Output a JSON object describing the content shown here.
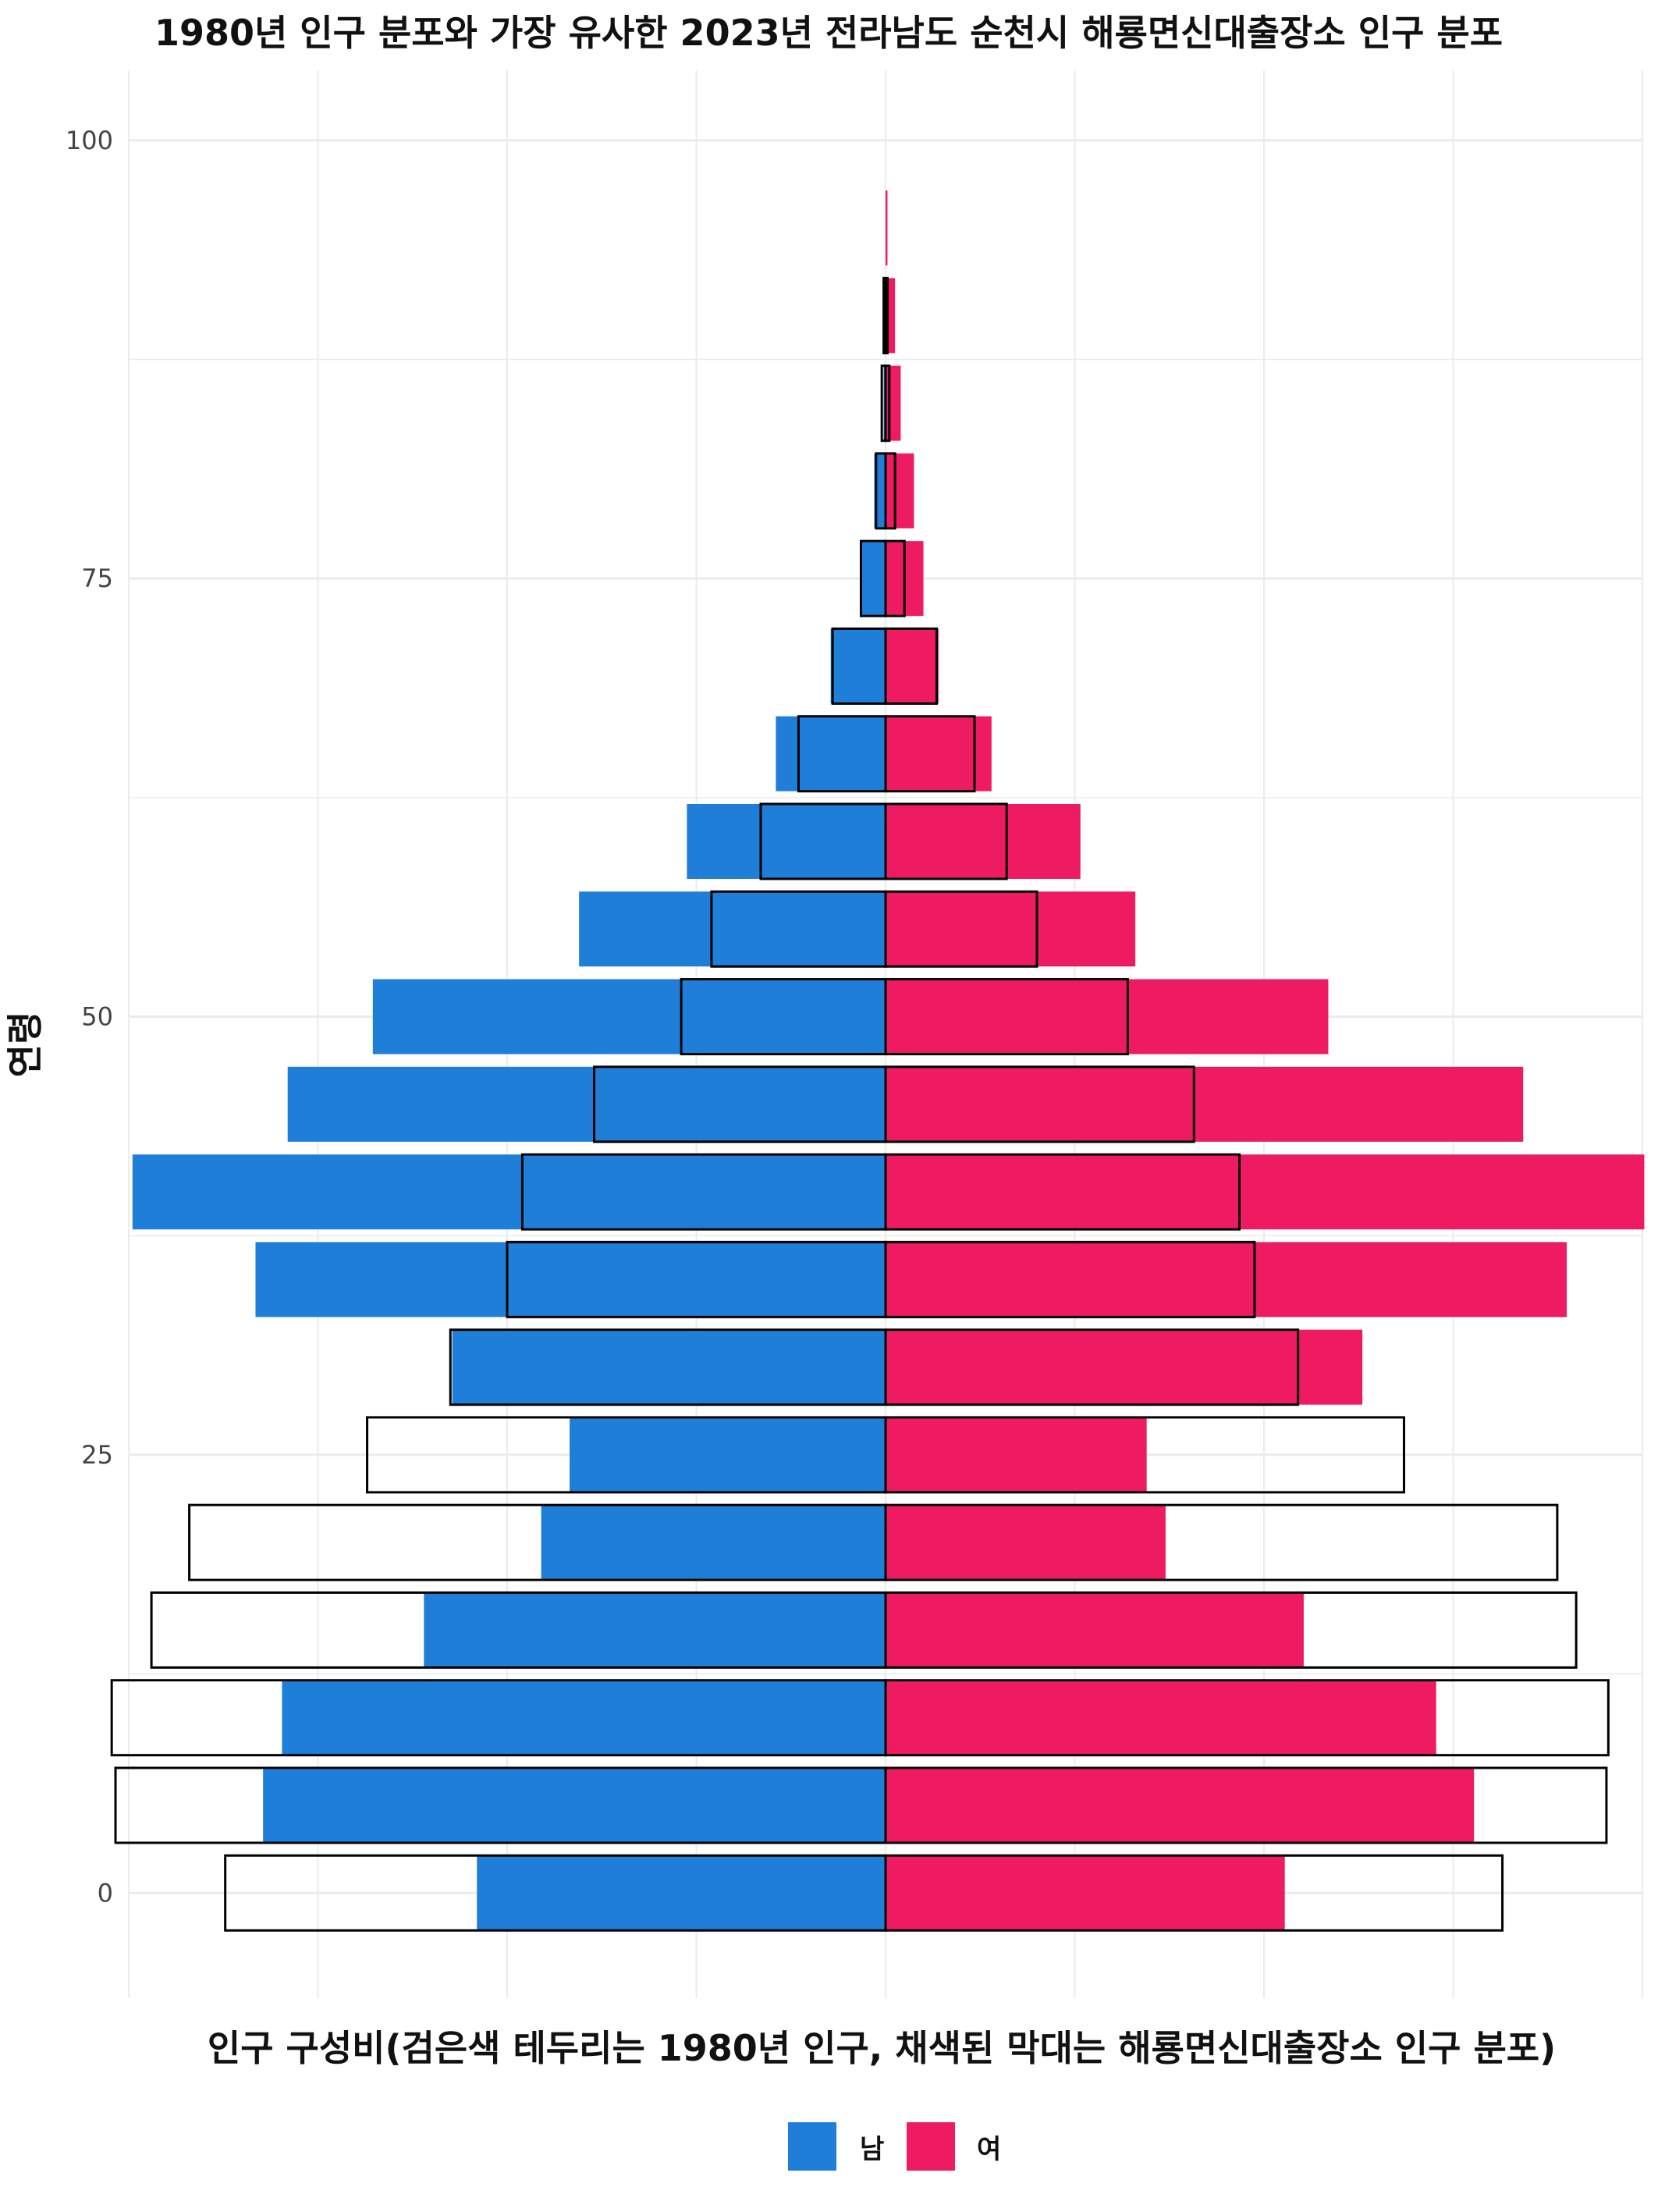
{
  "chart_data": {
    "type": "bar",
    "orientation": "horizontal",
    "layout": "population-pyramid",
    "title": "1980년 인구 분포와 가장 유사한 2023년 전라남도 순천시 해룡면신대출장소 인구 분포",
    "xlabel": "인구 구성비(검은색 테두리는 1980년 인구, 채색된 막대는 해룡면신대출장소 인구 분포)",
    "ylabel": "연령",
    "y_ticks": [
      "0",
      "25",
      "50",
      "75",
      "100"
    ],
    "ylim": [
      -6,
      104
    ],
    "xlim": [
      -0.04,
      0.04
    ],
    "legend": {
      "position": "bottom",
      "entries": [
        "남",
        "여"
      ]
    },
    "colors": {
      "male": "#1f7fd8",
      "female": "#ee1b63",
      "outline": "#000000"
    },
    "grid": true,
    "age_groups": [
      0,
      5,
      10,
      15,
      20,
      25,
      30,
      35,
      40,
      45,
      50,
      55,
      60,
      65,
      70,
      75,
      80,
      85,
      90,
      95,
      100
    ],
    "series": [
      {
        "name": "남",
        "kind": "2023 해룡면신대출장소",
        "values": [
          -0.0216,
          -0.0329,
          -0.0319,
          -0.0244,
          -0.0182,
          -0.0167,
          -0.0229,
          -0.0333,
          -0.0398,
          -0.0316,
          -0.0271,
          -0.0162,
          -0.0105,
          -0.0058,
          -0.0029,
          -0.0013,
          -0.0006,
          -0.0001,
          0,
          0,
          0
        ]
      },
      {
        "name": "여",
        "kind": "2023 해룡면신대출장소",
        "values": [
          0.0211,
          0.0311,
          0.0291,
          0.0221,
          0.0148,
          0.0138,
          0.0252,
          0.036,
          0.0401,
          0.0337,
          0.0234,
          0.0132,
          0.0103,
          0.0056,
          0.0028,
          0.002,
          0.0015,
          0.0008,
          0.0005,
          0.0001,
          0
        ]
      },
      {
        "name": "남",
        "kind": "1980 인구",
        "values": [
          -0.0349,
          -0.0407,
          -0.0409,
          -0.0388,
          -0.0368,
          -0.0274,
          -0.023,
          -0.02,
          -0.0192,
          -0.0154,
          -0.0108,
          -0.0092,
          -0.0066,
          -0.0046,
          -0.0028,
          -0.0013,
          -0.0005,
          -0.0002,
          -0.0001,
          0,
          0
        ]
      },
      {
        "name": "여",
        "kind": "1980 인구",
        "values": [
          0.0326,
          0.0381,
          0.0382,
          0.0365,
          0.0355,
          0.0274,
          0.0218,
          0.0195,
          0.0187,
          0.0163,
          0.0128,
          0.008,
          0.0064,
          0.0047,
          0.0027,
          0.001,
          0.0005,
          0.0002,
          0.0001,
          0,
          0
        ]
      }
    ]
  }
}
